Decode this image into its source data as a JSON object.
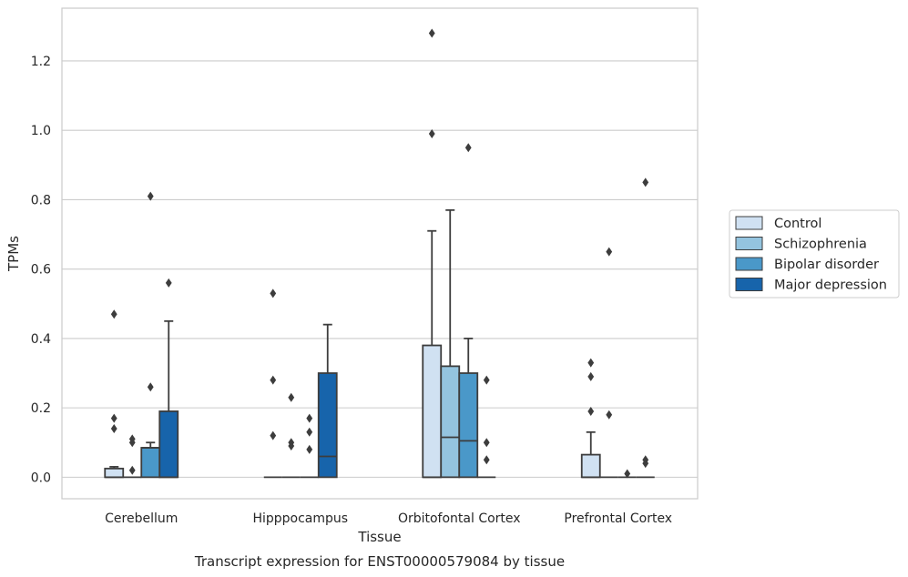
{
  "chart_data": {
    "type": "box",
    "caption": "Transcript expression for ENST00000579084 by tissue",
    "xlabel": "Tissue",
    "ylabel": "TPMs",
    "ylim": [
      -0.062,
      1.352
    ],
    "yticks": [
      0.0,
      0.2,
      0.4,
      0.6,
      0.8,
      1.0,
      1.2
    ],
    "ytick_labels": [
      "0.0",
      "0.2",
      "0.4",
      "0.6",
      "0.8",
      "1.0",
      "1.2"
    ],
    "grid": "horizontal",
    "legend_position": "right",
    "categories": [
      "Cerebellum",
      "Hipppocampus",
      "Orbitofontal Cortex",
      "Prefrontal Cortex"
    ],
    "series": [
      {
        "name": "Control",
        "color": "#d0e1f2",
        "boxes": [
          {
            "q1": 0.0,
            "median": 0.0,
            "q3": 0.025,
            "whisker_low": 0.0,
            "whisker_high": 0.03,
            "outliers": [
              0.47,
              0.17,
              0.14
            ]
          },
          {
            "q1": 0.0,
            "median": 0.0,
            "q3": 0.0,
            "whisker_low": 0.0,
            "whisker_high": 0.0,
            "outliers": [
              0.53,
              0.28,
              0.12
            ]
          },
          {
            "q1": 0.0,
            "median": 0.0,
            "q3": 0.38,
            "whisker_low": 0.0,
            "whisker_high": 0.71,
            "outliers": [
              1.28,
              0.99
            ]
          },
          {
            "q1": 0.0,
            "median": 0.0,
            "q3": 0.065,
            "whisker_low": 0.0,
            "whisker_high": 0.13,
            "outliers": [
              0.33,
              0.29,
              0.19
            ]
          }
        ]
      },
      {
        "name": "Schizophrenia",
        "color": "#94c4df",
        "boxes": [
          {
            "q1": 0.0,
            "median": 0.0,
            "q3": 0.0,
            "whisker_low": 0.0,
            "whisker_high": 0.0,
            "outliers": [
              0.11,
              0.1,
              0.02
            ]
          },
          {
            "q1": 0.0,
            "median": 0.0,
            "q3": 0.0,
            "whisker_low": 0.0,
            "whisker_high": 0.0,
            "outliers": [
              0.23,
              0.1,
              0.09
            ]
          },
          {
            "q1": 0.0,
            "median": 0.115,
            "q3": 0.32,
            "whisker_low": 0.0,
            "whisker_high": 0.77,
            "outliers": []
          },
          {
            "q1": 0.0,
            "median": 0.0,
            "q3": 0.0,
            "whisker_low": 0.0,
            "whisker_high": 0.0,
            "outliers": [
              0.65,
              0.18
            ]
          }
        ]
      },
      {
        "name": "Bipolar disorder",
        "color": "#4a98c9",
        "boxes": [
          {
            "q1": 0.0,
            "median": 0.085,
            "q3": 0.085,
            "whisker_low": 0.0,
            "whisker_high": 0.1,
            "outliers": [
              0.81,
              0.26
            ]
          },
          {
            "q1": 0.0,
            "median": 0.0,
            "q3": 0.0,
            "whisker_low": 0.0,
            "whisker_high": 0.0,
            "outliers": [
              0.17,
              0.13,
              0.08
            ]
          },
          {
            "q1": 0.0,
            "median": 0.105,
            "q3": 0.3,
            "whisker_low": 0.0,
            "whisker_high": 0.4,
            "outliers": [
              0.95
            ]
          },
          {
            "q1": 0.0,
            "median": 0.0,
            "q3": 0.0,
            "whisker_low": 0.0,
            "whisker_high": 0.0,
            "outliers": [
              0.01
            ]
          }
        ]
      },
      {
        "name": "Major depression",
        "color": "#1764ab",
        "boxes": [
          {
            "q1": 0.0,
            "median": 0.0,
            "q3": 0.19,
            "whisker_low": 0.0,
            "whisker_high": 0.45,
            "outliers": [
              0.56
            ]
          },
          {
            "q1": 0.0,
            "median": 0.06,
            "q3": 0.3,
            "whisker_low": 0.0,
            "whisker_high": 0.44,
            "outliers": []
          },
          {
            "q1": 0.0,
            "median": 0.0,
            "q3": 0.0,
            "whisker_low": 0.0,
            "whisker_high": 0.0,
            "outliers": [
              0.28,
              0.1,
              0.05
            ]
          },
          {
            "q1": 0.0,
            "median": 0.0,
            "q3": 0.0,
            "whisker_low": 0.0,
            "whisker_high": 0.0,
            "outliers": [
              0.85,
              0.05,
              0.04
            ]
          }
        ]
      }
    ]
  }
}
